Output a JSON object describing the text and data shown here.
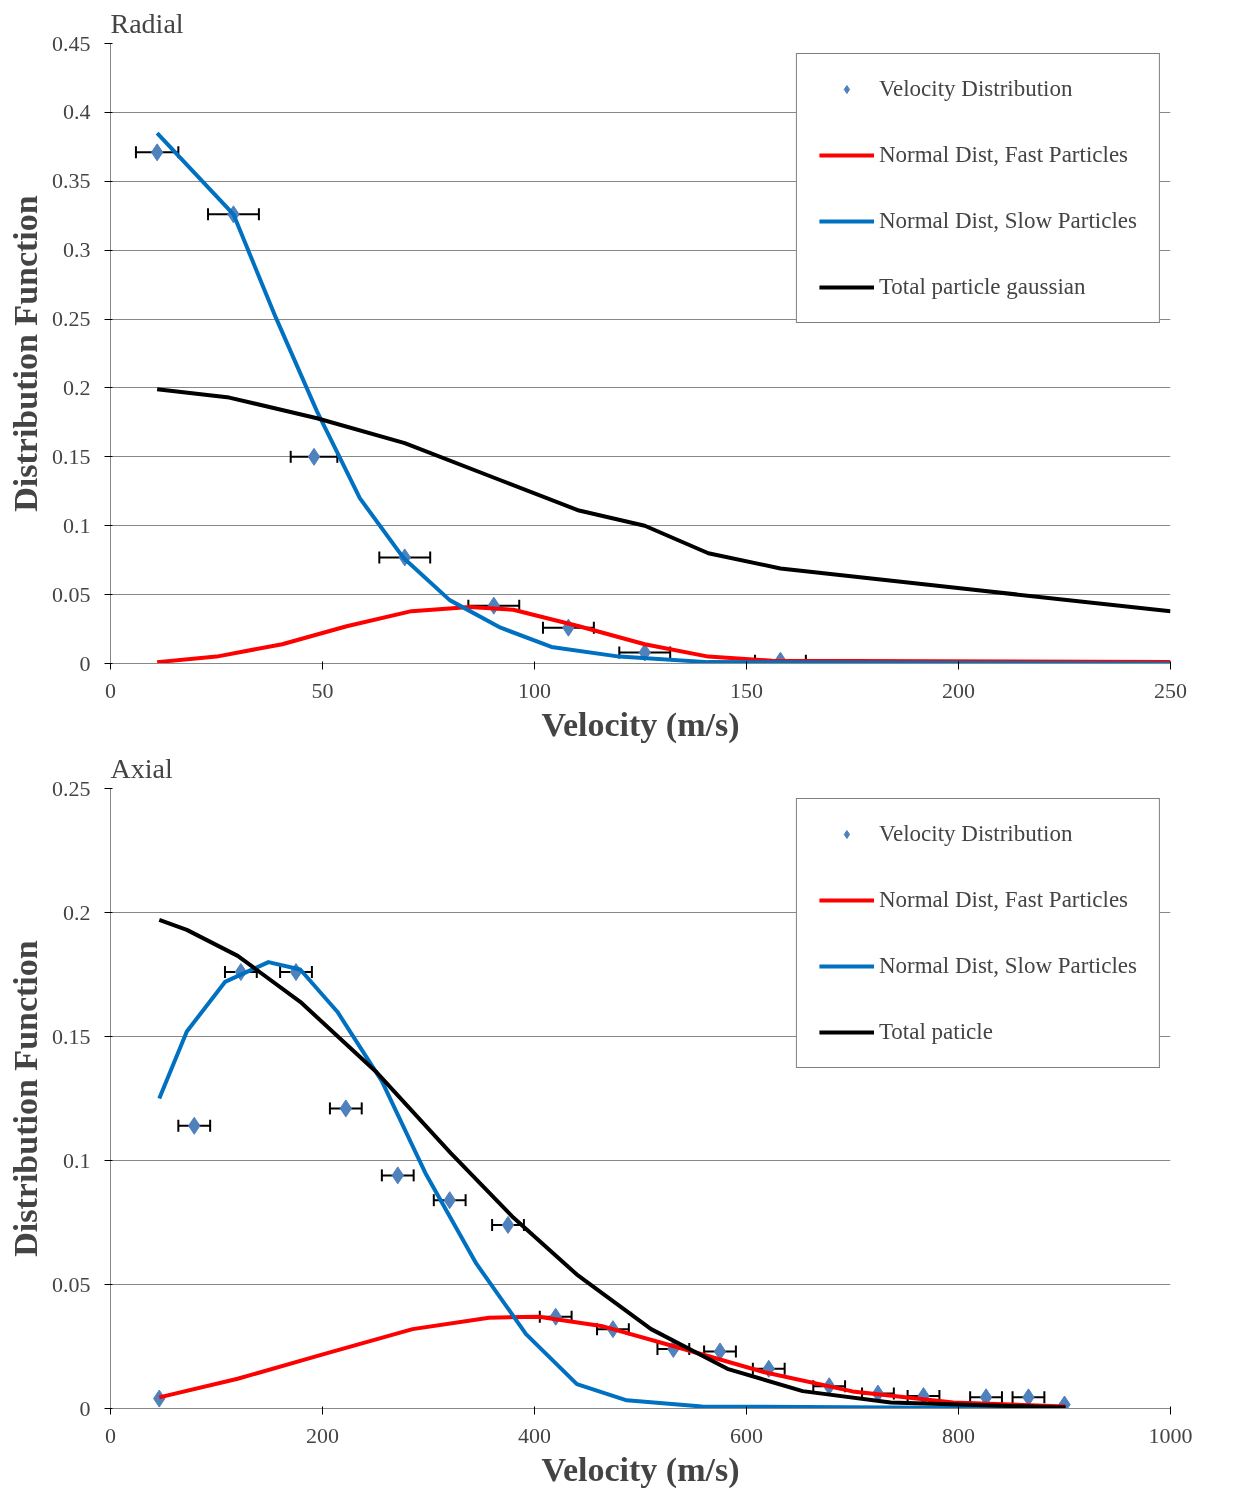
{
  "chart_data": [
    {
      "type": "line",
      "title": "Radial",
      "xlabel": "Velocity (m/s)",
      "ylabel": "Distribution Function",
      "xlim": [
        0,
        250
      ],
      "ylim": [
        0,
        0.45
      ],
      "xticks": [
        0,
        50,
        100,
        150,
        200,
        250
      ],
      "yticks": [
        0,
        0.05,
        0.1,
        0.15,
        0.2,
        0.25,
        0.3,
        0.35,
        0.4,
        0.45
      ],
      "grid": "y",
      "legend": "top right",
      "series": [
        {
          "name": "Velocity Distribution",
          "type": "scatter",
          "marker": "diamond",
          "color": "#4f81bd",
          "x": [
            11,
            29,
            48,
            69.4,
            90.4,
            108,
            126,
            158
          ],
          "values": [
            0.371,
            0.326,
            0.15,
            0.077,
            0.042,
            0.026,
            0.008,
            0.002
          ],
          "xerrors": [
            5,
            6,
            5.5,
            6,
            6,
            6,
            6,
            6
          ]
        },
        {
          "name": "Normal Dist, Fast Particles",
          "color": "#ff0000",
          "x": [
            11,
            25,
            40.5,
            55.7,
            71,
            84.7,
            95,
            110.5,
            126,
            141,
            156,
            250
          ],
          "values": [
            0.001,
            0.005,
            0.014,
            0.027,
            0.038,
            0.041,
            0.039,
            0.027,
            0.014,
            0.005,
            0.002,
            0.001
          ]
        },
        {
          "name": "Normal Dist, Slow Particles",
          "color": "#0070c0",
          "x": [
            11,
            29,
            39,
            48.7,
            58.8,
            69,
            80,
            92,
            104,
            120,
            141,
            250
          ],
          "values": [
            0.385,
            0.326,
            0.251,
            0.183,
            0.12,
            0.077,
            0.046,
            0.026,
            0.012,
            0.005,
            0.001,
            0
          ]
        },
        {
          "name": "Total particle gaussian",
          "color": "#000000",
          "x": [
            11,
            28,
            48.7,
            69.4,
            92,
            110.5,
            126,
            141,
            158,
            202,
            250
          ],
          "values": [
            0.199,
            0.193,
            0.178,
            0.16,
            0.133,
            0.111,
            0.1,
            0.08,
            0.069,
            0.054,
            0.038
          ]
        }
      ]
    },
    {
      "type": "line",
      "title": "Axial",
      "xlabel": "Velocity (m/s)",
      "ylabel": "Distribution Function",
      "xlim": [
        0,
        1000
      ],
      "ylim": [
        0,
        0.25
      ],
      "xticks": [
        0,
        200,
        400,
        600,
        800,
        1000
      ],
      "yticks": [
        0,
        0.05,
        0.1,
        0.15,
        0.2,
        0.25
      ],
      "grid": "y",
      "legend": "top right",
      "series": [
        {
          "name": "Velocity Distribution",
          "type": "scatter",
          "marker": "diamond",
          "color": "#4f81bd",
          "x": [
            46,
            79,
            123,
            175,
            222,
            271,
            320,
            375,
            420,
            474,
            531,
            575,
            621,
            678,
            724,
            767,
            826,
            866,
            900
          ],
          "values": [
            0.004,
            0.114,
            0.176,
            0.176,
            0.121,
            0.094,
            0.084,
            0.074,
            0.037,
            0.032,
            0.024,
            0.023,
            0.016,
            0.009,
            0.006,
            0.005,
            0.0045,
            0.0045,
            0.0016
          ],
          "xerrors": [
            null,
            15,
            15,
            15,
            15,
            15,
            15,
            15,
            15,
            15,
            15,
            15,
            15,
            15,
            15,
            15,
            15,
            15,
            null
          ]
        },
        {
          "name": "Normal Dist, Fast Particles",
          "color": "#ff0000",
          "x": [
            46,
            120,
            202,
            285,
            357,
            404,
            463,
            534,
            617,
            700,
            795,
            901
          ],
          "values": [
            0.0045,
            0.012,
            0.022,
            0.032,
            0.0366,
            0.037,
            0.0333,
            0.0248,
            0.0146,
            0.0069,
            0.0024,
            0.0008
          ]
        },
        {
          "name": "Normal Dist, Slow Particles",
          "color": "#0070c0",
          "x": [
            46,
            72,
            108,
            149,
            179,
            214,
            256,
            297,
            345,
            392,
            440,
            487,
            558,
            901
          ],
          "values": [
            0.125,
            0.152,
            0.172,
            0.18,
            0.177,
            0.16,
            0.132,
            0.095,
            0.0585,
            0.03,
            0.0098,
            0.0033,
            0.0008,
            0
          ]
        },
        {
          "name": "Total paticle",
          "color": "#000000",
          "x": [
            46,
            72,
            120,
            179,
            250,
            321,
            380,
            440,
            510,
            582,
            653,
            736,
            901
          ],
          "values": [
            0.197,
            0.193,
            0.1825,
            0.164,
            0.136,
            0.103,
            0.077,
            0.054,
            0.032,
            0.016,
            0.007,
            0.0024,
            0.0004
          ]
        }
      ]
    }
  ]
}
